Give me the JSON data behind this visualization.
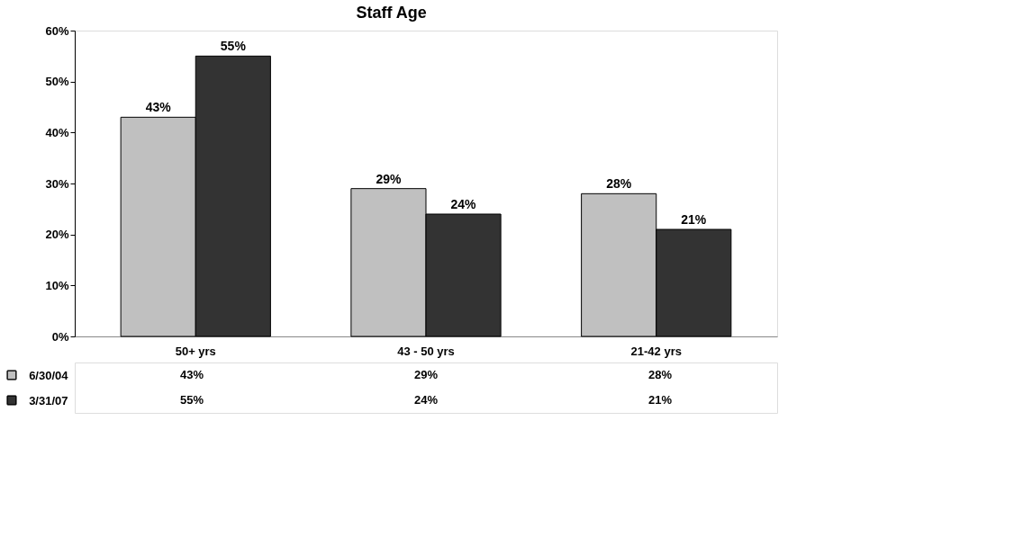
{
  "chart_data": {
    "type": "bar",
    "title": "Staff Age",
    "categories": [
      "50+ yrs",
      "43 - 50 yrs",
      "21-42 yrs"
    ],
    "series": [
      {
        "name": "6/30/04",
        "color": "#c0c0c0",
        "values": [
          43,
          29,
          28
        ]
      },
      {
        "name": "3/31/07",
        "color": "#333333",
        "values": [
          55,
          24,
          21
        ]
      }
    ],
    "ylim": [
      0,
      60
    ],
    "yticks": [
      {
        "value": 0,
        "label": "0%"
      },
      {
        "value": 10,
        "label": "10%"
      },
      {
        "value": 20,
        "label": "20%"
      },
      {
        "value": 30,
        "label": "30%"
      },
      {
        "value": 40,
        "label": "40%"
      },
      {
        "value": 50,
        "label": "50%"
      },
      {
        "value": 60,
        "label": "60%"
      }
    ],
    "value_labels": [
      [
        "43%",
        "29%",
        "28%"
      ],
      [
        "55%",
        "24%",
        "21%"
      ]
    ],
    "legend": "bottom",
    "grid": false
  }
}
